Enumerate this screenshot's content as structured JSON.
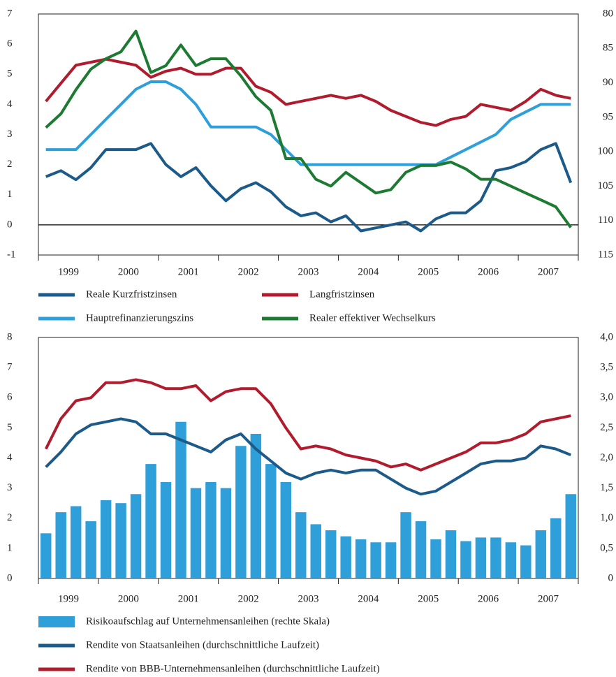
{
  "chart_data": [
    {
      "type": "line",
      "categories": [
        "1999",
        "2000",
        "2001",
        "2002",
        "2003",
        "2004",
        "2005",
        "2006",
        "2007"
      ],
      "x": [
        1999.125,
        1999.375,
        1999.625,
        1999.875,
        2000.125,
        2000.375,
        2000.625,
        2000.875,
        2001.125,
        2001.375,
        2001.625,
        2001.875,
        2002.125,
        2002.375,
        2002.625,
        2002.875,
        2003.125,
        2003.375,
        2003.625,
        2003.875,
        2004.125,
        2004.375,
        2004.625,
        2004.875,
        2005.125,
        2005.375,
        2005.625,
        2005.875,
        2006.125,
        2006.375,
        2006.625,
        2006.875,
        2007.125,
        2007.375,
        2007.625,
        2007.875
      ],
      "xlim": [
        1999,
        2008
      ],
      "ylim": [
        -1,
        7
      ],
      "yticks": [
        -1,
        0,
        1,
        2,
        3,
        4,
        5,
        6,
        7
      ],
      "y2lim": [
        115,
        80
      ],
      "y2ticks": [
        80,
        85,
        90,
        95,
        100,
        105,
        110,
        115
      ],
      "zero_line": true,
      "legend_columns": 2,
      "series": [
        {
          "name": "Reale Kurzfristzinsen",
          "color": "#1c5a8a",
          "values": [
            1.6,
            1.8,
            1.5,
            1.9,
            2.5,
            2.5,
            2.5,
            2.7,
            2.0,
            1.6,
            1.9,
            1.3,
            0.8,
            1.2,
            1.4,
            1.1,
            0.6,
            0.3,
            0.4,
            0.1,
            0.3,
            -0.2,
            -0.1,
            0.0,
            0.1,
            -0.2,
            0.2,
            0.4,
            0.4,
            0.8,
            1.8,
            1.9,
            2.1,
            2.5,
            2.7,
            1.4
          ]
        },
        {
          "name": "Langfristzinsen",
          "color": "#b01c2e",
          "values": [
            4.1,
            4.7,
            5.3,
            5.4,
            5.5,
            5.4,
            5.3,
            4.9,
            5.1,
            5.2,
            5.0,
            5.0,
            5.2,
            5.2,
            4.6,
            4.4,
            4.0,
            4.1,
            4.2,
            4.3,
            4.2,
            4.3,
            4.1,
            3.8,
            3.6,
            3.4,
            3.3,
            3.5,
            3.6,
            4.0,
            3.9,
            3.8,
            4.1,
            4.5,
            4.3,
            4.2
          ]
        },
        {
          "name": "Hauptrefinanzierungszins",
          "color": "#2d9fda",
          "values": [
            2.5,
            2.5,
            2.5,
            3.0,
            3.5,
            4.0,
            4.5,
            4.75,
            4.75,
            4.5,
            4.0,
            3.25,
            3.25,
            3.25,
            3.25,
            3.0,
            2.5,
            2.0,
            2.0,
            2.0,
            2.0,
            2.0,
            2.0,
            2.0,
            2.0,
            2.0,
            2.0,
            2.25,
            2.5,
            2.75,
            3.0,
            3.5,
            3.75,
            4.0,
            4.0,
            4.0
          ]
        },
        {
          "name": "Realer effektiver Wechselkurs",
          "color": "#1d7a32",
          "axis": "y2",
          "values": [
            96.5,
            94.5,
            91,
            88,
            86.5,
            85.5,
            82.5,
            88.5,
            87.5,
            84.5,
            87.5,
            86.5,
            86.5,
            89,
            92,
            94,
            101,
            101,
            104,
            105,
            103,
            104.5,
            106,
            105.5,
            103,
            102,
            102,
            101.5,
            102.5,
            104,
            104,
            105,
            106,
            107,
            108,
            111
          ]
        }
      ]
    },
    {
      "type": "combo",
      "categories": [
        "1999",
        "2000",
        "2001",
        "2002",
        "2003",
        "2004",
        "2005",
        "2006",
        "2007"
      ],
      "x": [
        1999.125,
        1999.375,
        1999.625,
        1999.875,
        2000.125,
        2000.375,
        2000.625,
        2000.875,
        2001.125,
        2001.375,
        2001.625,
        2001.875,
        2002.125,
        2002.375,
        2002.625,
        2002.875,
        2003.125,
        2003.375,
        2003.625,
        2003.875,
        2004.125,
        2004.375,
        2004.625,
        2004.875,
        2005.125,
        2005.375,
        2005.625,
        2005.875,
        2006.125,
        2006.375,
        2006.625,
        2006.875,
        2007.125,
        2007.375,
        2007.625,
        2007.875
      ],
      "xlim": [
        1999,
        2008
      ],
      "ylim": [
        0,
        8
      ],
      "yticks": [
        0,
        1,
        2,
        3,
        4,
        5,
        6,
        7,
        8
      ],
      "y2lim": [
        0,
        4
      ],
      "y2ticks": [
        0,
        {
          "value": 0.5,
          "label": "0,5"
        },
        {
          "value": 1,
          "label": "1,0"
        },
        {
          "value": 1.5,
          "label": "1,5"
        },
        {
          "value": 2,
          "label": "2,0"
        },
        {
          "value": 2.5,
          "label": "2,5"
        },
        {
          "value": 3,
          "label": "3,0"
        },
        {
          "value": 3.5,
          "label": "3,5"
        },
        {
          "value": 4,
          "label": "4,0"
        }
      ],
      "legend_columns": 1,
      "series": [
        {
          "name": "Risikoaufschlag auf Unternehmensanleihen (rechte Skala)",
          "type": "bar",
          "color": "#2e9fd9",
          "axis": "y2",
          "values": [
            0.75,
            1.1,
            1.2,
            0.95,
            1.3,
            1.25,
            1.4,
            1.9,
            1.6,
            2.6,
            1.5,
            1.6,
            1.5,
            2.2,
            2.4,
            1.9,
            1.6,
            1.1,
            0.9,
            0.8,
            0.7,
            0.65,
            0.6,
            0.6,
            1.1,
            0.95,
            0.65,
            0.8,
            0.62,
            0.68,
            0.68,
            0.6,
            0.55,
            0.8,
            1.0,
            1.4
          ]
        },
        {
          "name": "Rendite von Staatsanleihen (durchschnittliche Laufzeit)",
          "type": "line",
          "color": "#1c5a8a",
          "values": [
            3.7,
            4.2,
            4.8,
            5.1,
            5.2,
            5.3,
            5.2,
            4.8,
            4.8,
            4.6,
            4.4,
            4.2,
            4.6,
            4.8,
            4.3,
            3.9,
            3.5,
            3.3,
            3.5,
            3.6,
            3.5,
            3.6,
            3.6,
            3.3,
            3.0,
            2.8,
            2.9,
            3.2,
            3.5,
            3.8,
            3.9,
            3.9,
            4.0,
            4.4,
            4.3,
            4.1
          ]
        },
        {
          "name": "Rendite von BBB-Unternehmensanleihen (durchschnittliche Laufzeit)",
          "type": "line",
          "color": "#b01c2e",
          "values": [
            4.3,
            5.3,
            5.9,
            6.0,
            6.5,
            6.5,
            6.6,
            6.5,
            6.3,
            6.3,
            6.4,
            5.9,
            6.2,
            6.3,
            6.3,
            5.8,
            5.0,
            4.3,
            4.4,
            4.3,
            4.1,
            4.0,
            3.9,
            3.7,
            3.8,
            3.6,
            3.8,
            4.0,
            4.2,
            4.5,
            4.5,
            4.6,
            4.8,
            5.2,
            5.3,
            5.4
          ]
        }
      ]
    }
  ]
}
